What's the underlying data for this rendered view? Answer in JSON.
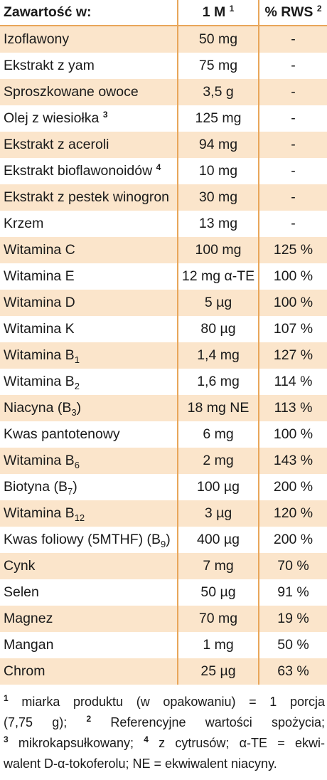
{
  "header": {
    "col_name": "Zawartość w:",
    "col_amount": "1 M",
    "col_amount_sup": "1",
    "col_rws": "% RWS",
    "col_rws_sup": "2"
  },
  "rows": [
    {
      "name": "Izoflawony",
      "amount": "50 mg",
      "rws": "-"
    },
    {
      "name": "Ekstrakt z yam",
      "amount": "75 mg",
      "rws": "-"
    },
    {
      "name": "Sproszkowane owoce",
      "amount": "3,5 g",
      "rws": "-"
    },
    {
      "name": "Olej z wiesiołka",
      "name_sup": "3",
      "amount": "125 mg",
      "rws": "-"
    },
    {
      "name": "Ekstrakt z aceroli",
      "amount": "94 mg",
      "rws": "-"
    },
    {
      "name": "Ekstrakt bioflawonoidów",
      "name_sup": "4",
      "amount": "10 mg",
      "rws": "-"
    },
    {
      "name": "Ekstrakt z pestek winogron",
      "amount": "30 mg",
      "rws": "-"
    },
    {
      "name": "Krzem",
      "amount": "13 mg",
      "rws": "-"
    },
    {
      "name": "Witamina C",
      "amount": "100 mg",
      "rws": "125 %"
    },
    {
      "name": "Witamina E",
      "amount": "12 mg α-TE",
      "rws": "100 %"
    },
    {
      "name": "Witamina D",
      "amount": "5 µg",
      "rws": "100 %"
    },
    {
      "name": "Witamina K",
      "amount": "80 µg",
      "rws": "107 %"
    },
    {
      "name": "Witamina B",
      "name_sub": "1",
      "amount": "1,4 mg",
      "rws": "127 %"
    },
    {
      "name": "Witamina B",
      "name_sub": "2",
      "amount": "1,6 mg",
      "rws": "114 %"
    },
    {
      "name": "Niacyna (B",
      "name_sub": "3",
      "name_after": ")",
      "amount": "18 mg NE",
      "rws": "113 %"
    },
    {
      "name": "Kwas pantotenowy",
      "amount": "6 mg",
      "rws": "100 %"
    },
    {
      "name": "Witamina B",
      "name_sub": "6",
      "amount": "2 mg",
      "rws": "143 %"
    },
    {
      "name": "Biotyna (B",
      "name_sub": "7",
      "name_after": ")",
      "amount": "100 µg",
      "rws": "200 %"
    },
    {
      "name": "Witamina B",
      "name_sub": "12",
      "amount": "3 µg",
      "rws": "120 %"
    },
    {
      "name": "Kwas foliowy (5MTHF) (B",
      "name_sub": "9",
      "name_after": ")",
      "amount": "400 µg",
      "rws": "200 %"
    },
    {
      "name": "Cynk",
      "amount": "7 mg",
      "rws": "70 %"
    },
    {
      "name": "Selen",
      "amount": "50 µg",
      "rws": "91 %"
    },
    {
      "name": "Magnez",
      "amount": "70 mg",
      "rws": "19 %"
    },
    {
      "name": "Mangan",
      "amount": "1 mg",
      "rws": "50 %"
    },
    {
      "name": "Chrom",
      "amount": "25 µg",
      "rws": "63 %"
    }
  ],
  "footnotes": {
    "n1_mark": "1",
    "n1_text": " miarka produktu (w opakowaniu) = 1 porcja",
    "n1_cont": "(7,75 g); ",
    "n2_mark": "2",
    "n2_text": " Referencyjne wartości spożycia;",
    "n3_mark": "3",
    "n3_text": " mikrokapsułkowany; ",
    "n4_mark": "4",
    "n4_text": " z cytrusów; α-TE = ekwi-",
    "line4": "walent D-α-tokoferolu; NE = ekwiwalent niacyny."
  },
  "colors": {
    "row_shade": "#fbe5cb",
    "divider": "#e8a65a"
  }
}
